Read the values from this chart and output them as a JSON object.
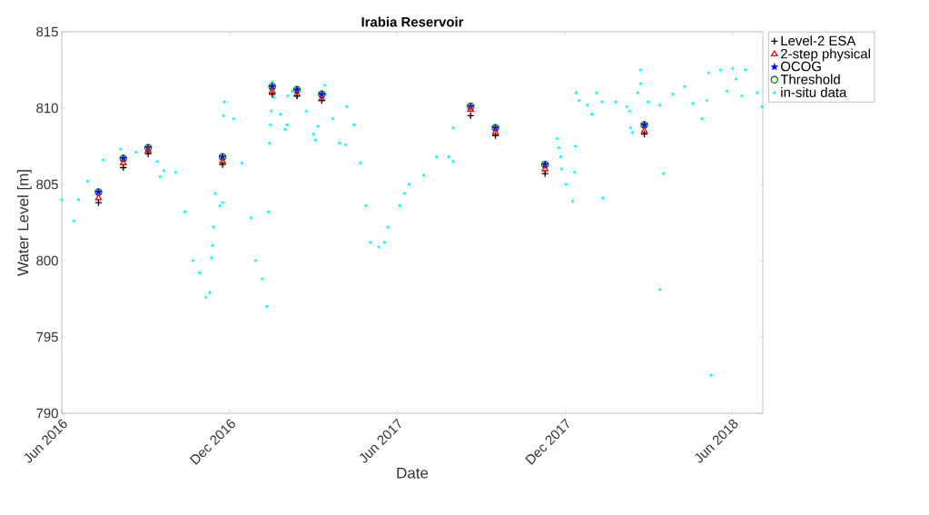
{
  "chart_data": {
    "type": "scatter",
    "title": "Irabia Reservoir",
    "xlabel": "Date",
    "ylabel": "Water Level [m]",
    "x": [
      "2016-07-11",
      "2016-08-07",
      "2016-09-03",
      "2016-11-23",
      "2017-01-16",
      "2017-02-12",
      "2017-03-11",
      "2017-08-20",
      "2017-09-16",
      "2017-11-09",
      "2018-02-25"
    ],
    "xlim": [
      "2016-06-01",
      "2018-07-04"
    ],
    "xticks": [
      {
        "value": "2016-06-01",
        "label": "Jun 2016"
      },
      {
        "value": "2016-12-01",
        "label": "Dec 2016"
      },
      {
        "value": "2017-06-01",
        "label": "Jun 2017"
      },
      {
        "value": "2017-12-01",
        "label": "Dec 2017"
      },
      {
        "value": "2018-06-01",
        "label": "Jun 2018"
      }
    ],
    "ylim": [
      790,
      815
    ],
    "yticks": [
      790,
      795,
      800,
      805,
      810,
      815
    ],
    "legend": "top right",
    "series": [
      {
        "name": "Level-2 ESA",
        "color": "#000000",
        "marker": "cross",
        "values": [
          803.8,
          806.1,
          807.0,
          806.3,
          810.9,
          810.8,
          810.5,
          809.5,
          808.2,
          805.7,
          808.3
        ]
      },
      {
        "name": "2-step physical",
        "color": "#ff0000",
        "marker": "triangle",
        "values": [
          804.1,
          806.4,
          807.2,
          806.5,
          811.1,
          810.9,
          810.6,
          809.9,
          808.4,
          806.0,
          808.5
        ]
      },
      {
        "name": "OCOG",
        "color": "#0000ff",
        "marker": "star",
        "values": [
          804.5,
          806.7,
          807.4,
          806.8,
          811.4,
          811.2,
          810.9,
          810.1,
          808.7,
          806.3,
          808.9
        ]
      },
      {
        "name": "Threshold",
        "color": "#008000",
        "marker": "circle",
        "values": [
          804.5,
          806.7,
          807.4,
          806.8,
          811.4,
          811.2,
          810.9,
          810.1,
          808.7,
          806.3,
          808.9
        ]
      },
      {
        "name": "in-situ data",
        "color": "#00ffff",
        "x": [
          "2016-06-01",
          "2016-06-14",
          "2016-06-19",
          "2016-06-29",
          "2016-07-16",
          "2016-08-04",
          "2016-08-21",
          "2016-09-13",
          "2016-09-16",
          "2016-09-20",
          "2016-10-03",
          "2016-10-13",
          "2016-10-22",
          "2016-10-29",
          "2016-11-05",
          "2016-11-09",
          "2016-11-11",
          "2016-11-12",
          "2016-11-13",
          "2016-11-15",
          "2016-11-20",
          "2016-11-23",
          "2016-11-24",
          "2016-11-25",
          "2016-12-05",
          "2016-12-14",
          "2016-12-24",
          "2016-12-29",
          "2017-01-05",
          "2017-01-10",
          "2017-01-12",
          "2017-01-13",
          "2017-01-14",
          "2017-01-15",
          "2017-01-16",
          "2017-01-18",
          "2017-01-25",
          "2017-01-30",
          "2017-02-01",
          "2017-02-02",
          "2017-02-07",
          "2017-02-12",
          "2017-02-22",
          "2017-03-02",
          "2017-03-04",
          "2017-03-07",
          "2017-03-14",
          "2017-03-15",
          "2017-03-23",
          "2017-03-30",
          "2017-04-06",
          "2017-04-07",
          "2017-04-15",
          "2017-04-22",
          "2017-04-28",
          "2017-05-03",
          "2017-05-12",
          "2017-05-18",
          "2017-05-22",
          "2017-06-04",
          "2017-06-09",
          "2017-06-14",
          "2017-06-30",
          "2017-07-14",
          "2017-07-27",
          "2017-08-01",
          "2017-08-01",
          "2017-11-22",
          "2017-11-24",
          "2017-11-26",
          "2017-11-27",
          "2017-12-02",
          "2017-12-09",
          "2017-12-11",
          "2017-12-12",
          "2017-12-13",
          "2017-12-16",
          "2017-12-25",
          "2017-12-30",
          "2018-01-04",
          "2018-01-10",
          "2018-01-11",
          "2018-01-25",
          "2018-02-06",
          "2018-02-09",
          "2018-02-10",
          "2018-02-12",
          "2018-02-18",
          "2018-02-21",
          "2018-02-21",
          "2018-03-01",
          "2018-03-14",
          "2018-03-14",
          "2018-03-18",
          "2018-03-28",
          "2018-04-10",
          "2018-04-19",
          "2018-04-29",
          "2018-05-04",
          "2018-05-06",
          "2018-05-09",
          "2018-05-19",
          "2018-05-26",
          "2018-06-01",
          "2018-06-05",
          "2018-06-11",
          "2018-06-15",
          "2018-06-28",
          "2018-07-03"
        ],
        "values": [
          804.0,
          802.6,
          804.0,
          805.2,
          806.6,
          807.3,
          807.1,
          806.5,
          805.5,
          805.9,
          805.8,
          803.2,
          800.0,
          799.2,
          797.6,
          797.9,
          800.2,
          801.0,
          802.2,
          804.4,
          803.6,
          803.8,
          809.5,
          810.4,
          809.3,
          806.4,
          802.8,
          800.0,
          798.8,
          797.0,
          803.2,
          807.7,
          808.9,
          809.8,
          811.7,
          810.7,
          809.6,
          808.6,
          808.9,
          810.8,
          811.1,
          810.7,
          809.8,
          808.3,
          807.9,
          808.8,
          811.5,
          810.9,
          809.3,
          807.7,
          807.6,
          810.1,
          808.9,
          806.4,
          803.6,
          801.2,
          800.9,
          801.2,
          802.2,
          803.6,
          804.4,
          805.0,
          805.6,
          806.8,
          806.8,
          806.5,
          808.7,
          808.0,
          807.4,
          806.8,
          806.0,
          805.0,
          803.9,
          805.8,
          807.5,
          811.0,
          810.5,
          810.2,
          809.6,
          811.0,
          810.4,
          804.1,
          810.4,
          810.1,
          809.8,
          808.7,
          808.4,
          811.0,
          812.5,
          811.6,
          810.4,
          810.2,
          798.1,
          805.7,
          810.9,
          811.4,
          810.3,
          809.3,
          810.5,
          812.3,
          792.5,
          812.5,
          811.1,
          812.6,
          811.9,
          810.8,
          812.5,
          811.0,
          810.1
        ]
      }
    ]
  }
}
